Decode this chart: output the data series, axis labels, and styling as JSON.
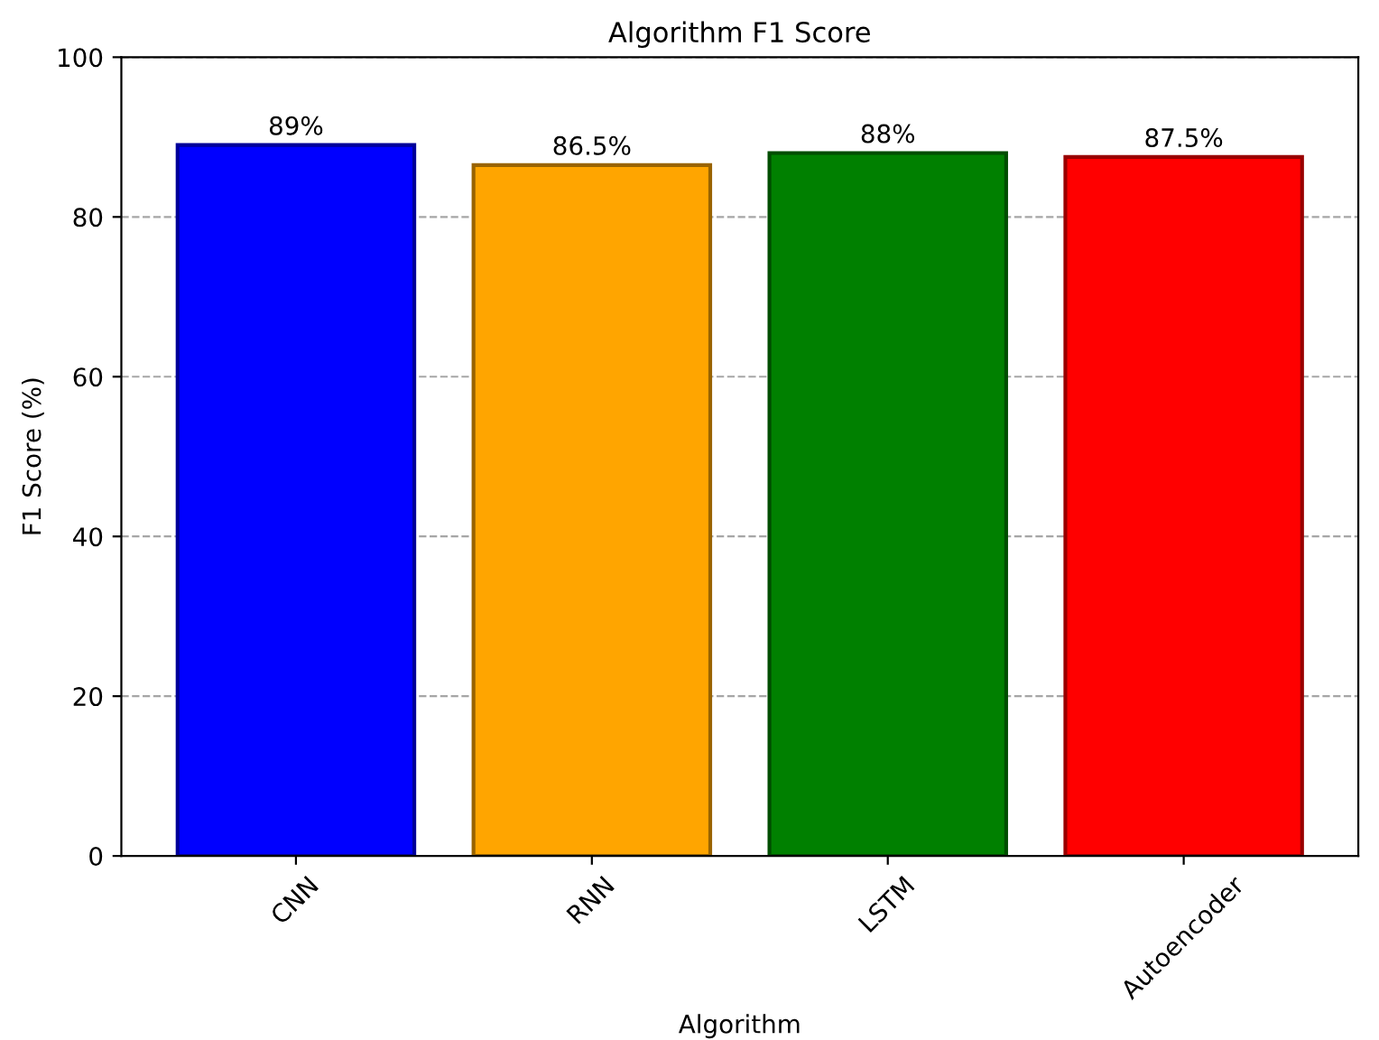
{
  "chart_data": {
    "type": "bar",
    "title": "Algorithm F1 Score",
    "xlabel": "Algorithm",
    "ylabel": "F1 Score (%)",
    "categories": [
      "CNN",
      "RNN",
      "LSTM",
      "Autoencoder"
    ],
    "values": [
      89,
      86.5,
      88,
      87.5
    ],
    "value_labels": [
      "89%",
      "86.5%",
      "88%",
      "87.5%"
    ],
    "colors": [
      "#0000ff",
      "#ffa500",
      "#008000",
      "#ff0000"
    ],
    "ylim": [
      0,
      100
    ],
    "yticks": [
      0,
      20,
      40,
      60,
      80,
      100
    ],
    "grid": "y",
    "line_style": "dashed",
    "legend": false
  }
}
